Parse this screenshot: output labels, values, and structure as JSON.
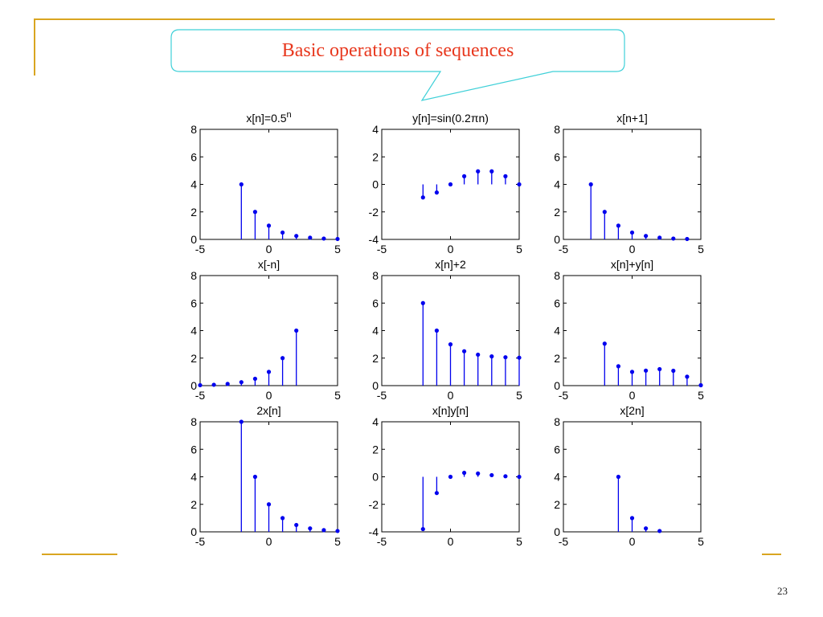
{
  "slide": {
    "title": "Basic operations of sequences",
    "page_number": "23",
    "colors": {
      "accent_rule": "#D9A520",
      "title": "#E8381E",
      "callout_border": "#3FD0D8",
      "stem": "#0000EE"
    }
  },
  "chart_data": [
    {
      "type": "stem",
      "title": "x[n]=0.5",
      "title_sup": "n",
      "xlim": [
        -5,
        5
      ],
      "ylim": [
        0,
        8
      ],
      "xticks": [
        "-5",
        "0",
        "5"
      ],
      "yticks": [
        "0",
        "2",
        "4",
        "6",
        "8"
      ],
      "x": [
        -2,
        -1,
        0,
        1,
        2,
        3,
        4,
        5
      ],
      "y": [
        4,
        2,
        1,
        0.5,
        0.25,
        0.125,
        0.0625,
        0.03125
      ]
    },
    {
      "type": "stem",
      "title": "y[n]=sin(0.2πn)",
      "title_sup": "",
      "xlim": [
        -5,
        5
      ],
      "ylim": [
        -4,
        4
      ],
      "xticks": [
        "-5",
        "0",
        "5"
      ],
      "yticks": [
        "-4",
        "-2",
        "0",
        "2",
        "4"
      ],
      "x": [
        -2,
        -1,
        0,
        1,
        2,
        3,
        4,
        5
      ],
      "y": [
        -0.95,
        -0.59,
        0,
        0.59,
        0.95,
        0.95,
        0.59,
        0
      ]
    },
    {
      "type": "stem",
      "title": "x[n+1]",
      "title_sup": "",
      "xlim": [
        -5,
        5
      ],
      "ylim": [
        0,
        8
      ],
      "xticks": [
        "-5",
        "0",
        "5"
      ],
      "yticks": [
        "0",
        "2",
        "4",
        "6",
        "8"
      ],
      "x": [
        -3,
        -2,
        -1,
        0,
        1,
        2,
        3,
        4
      ],
      "y": [
        4,
        2,
        1,
        0.5,
        0.25,
        0.125,
        0.0625,
        0.03125
      ]
    },
    {
      "type": "stem",
      "title": "x[-n]",
      "title_sup": "",
      "xlim": [
        -5,
        5
      ],
      "ylim": [
        0,
        8
      ],
      "xticks": [
        "-5",
        "0",
        "5"
      ],
      "yticks": [
        "0",
        "2",
        "4",
        "6",
        "8"
      ],
      "x": [
        -5,
        -4,
        -3,
        -2,
        -1,
        0,
        1,
        2
      ],
      "y": [
        0.03125,
        0.0625,
        0.125,
        0.25,
        0.5,
        1,
        2,
        4
      ]
    },
    {
      "type": "stem",
      "title": "x[n]+2",
      "title_sup": "",
      "xlim": [
        -5,
        5
      ],
      "ylim": [
        0,
        8
      ],
      "xticks": [
        "-5",
        "0",
        "5"
      ],
      "yticks": [
        "0",
        "2",
        "4",
        "6",
        "8"
      ],
      "x": [
        -2,
        -1,
        0,
        1,
        2,
        3,
        4,
        5
      ],
      "y": [
        6,
        4,
        3,
        2.5,
        2.25,
        2.125,
        2.0625,
        2.03125
      ]
    },
    {
      "type": "stem",
      "title": "x[n]+y[n]",
      "title_sup": "",
      "xlim": [
        -5,
        5
      ],
      "ylim": [
        0,
        8
      ],
      "xticks": [
        "-5",
        "0",
        "5"
      ],
      "yticks": [
        "0",
        "2",
        "4",
        "6",
        "8"
      ],
      "x": [
        -2,
        -1,
        0,
        1,
        2,
        3,
        4,
        5
      ],
      "y": [
        3.05,
        1.41,
        1,
        1.09,
        1.2,
        1.08,
        0.65,
        0.03
      ]
    },
    {
      "type": "stem",
      "title": "2x[n]",
      "title_sup": "",
      "xlim": [
        -5,
        5
      ],
      "ylim": [
        0,
        8
      ],
      "xticks": [
        "-5",
        "0",
        "5"
      ],
      "yticks": [
        "0",
        "2",
        "4",
        "6",
        "8"
      ],
      "x": [
        -2,
        -1,
        0,
        1,
        2,
        3,
        4,
        5
      ],
      "y": [
        8,
        4,
        2,
        1,
        0.5,
        0.25,
        0.125,
        0.0625
      ]
    },
    {
      "type": "stem",
      "title": "x[n]y[n]",
      "title_sup": "",
      "xlim": [
        -5,
        5
      ],
      "ylim": [
        -4,
        4
      ],
      "xticks": [
        "-5",
        "0",
        "5"
      ],
      "yticks": [
        "-4",
        "-2",
        "0",
        "2",
        "4"
      ],
      "x": [
        -2,
        -1,
        0,
        1,
        2,
        3,
        4,
        5
      ],
      "y": [
        -3.8,
        -1.18,
        0,
        0.29,
        0.24,
        0.12,
        0.04,
        0
      ]
    },
    {
      "type": "stem",
      "title": "x[2n]",
      "title_sup": "",
      "xlim": [
        -5,
        5
      ],
      "ylim": [
        0,
        8
      ],
      "xticks": [
        "-5",
        "0",
        "5"
      ],
      "yticks": [
        "0",
        "2",
        "4",
        "6",
        "8"
      ],
      "x": [
        -1,
        0,
        1,
        2
      ],
      "y": [
        4,
        1,
        0.25,
        0.0625
      ]
    }
  ]
}
